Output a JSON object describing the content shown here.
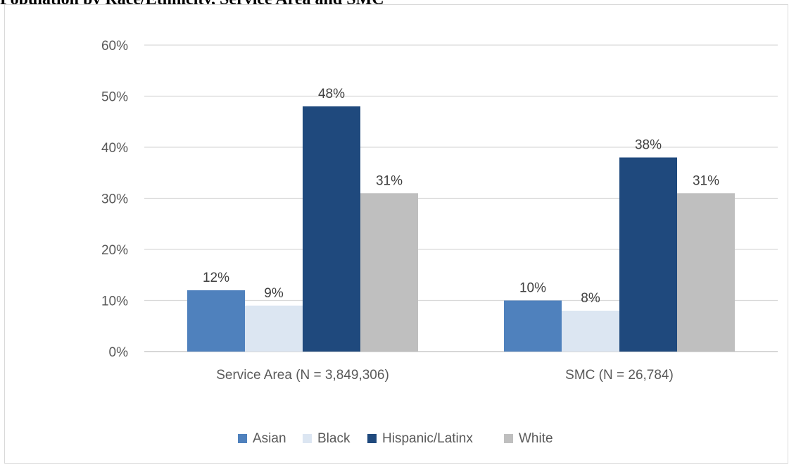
{
  "caption": "Population by Race/Ethnicity, Service Area and SMC",
  "chart_data": {
    "type": "bar",
    "categories": [
      "Service Area (N = 3,849,306)",
      "SMC (N = 26,784)"
    ],
    "series": [
      {
        "name": "Asian",
        "values": [
          12,
          10
        ],
        "color": "#4f81bd"
      },
      {
        "name": "Black",
        "values": [
          9,
          8
        ],
        "color": "#dce6f2"
      },
      {
        "name": "Hispanic/Latinx",
        "values": [
          48,
          38
        ],
        "color": "#1f497d"
      },
      {
        "name": "White",
        "values": [
          31,
          31
        ],
        "color": "#bfbfbf"
      }
    ],
    "value_format": "percent",
    "ylim": [
      0,
      60
    ],
    "yticks": [
      0,
      10,
      20,
      30,
      40,
      50,
      60
    ],
    "ytick_labels": [
      "0%",
      "10%",
      "20%",
      "30%",
      "40%",
      "50%",
      "60%"
    ],
    "grid": true,
    "legend_position": "bottom",
    "xlabel": "",
    "ylabel": ""
  }
}
